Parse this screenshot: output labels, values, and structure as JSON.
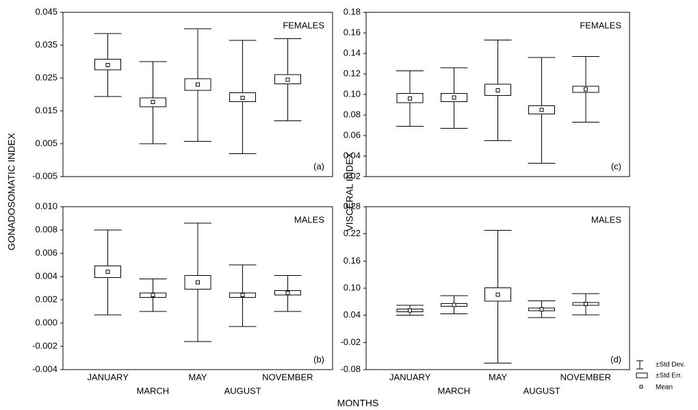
{
  "chart_data": [
    {
      "type": "box",
      "annotation": "FEMALES",
      "panel_label": "(a)",
      "means": [
        0.029,
        0.0177,
        0.023,
        0.019,
        0.0245
      ],
      "se_low": [
        0.0275,
        0.0163,
        0.0213,
        0.0178,
        0.0232
      ],
      "se_high": [
        0.0307,
        0.019,
        0.0248,
        0.0205,
        0.026
      ],
      "sd_low": [
        0.0194,
        0.005,
        0.0057,
        0.002,
        0.012
      ],
      "sd_high": [
        0.0385,
        0.03,
        0.04,
        0.0365,
        0.037
      ],
      "ylim": [
        -0.005,
        0.045
      ],
      "yticks": [
        -0.005,
        0.005,
        0.015,
        0.025,
        0.035,
        0.045
      ]
    },
    {
      "type": "box",
      "annotation": "MALES",
      "panel_label": "(b)",
      "categories": [
        "JANUARY",
        "MARCH",
        "MAY",
        "AUGUST",
        "NOVEMBER"
      ],
      "means": [
        0.0044,
        0.0024,
        0.0035,
        0.0024,
        0.0026
      ],
      "se_low": [
        0.0039,
        0.0022,
        0.0029,
        0.0022,
        0.0024
      ],
      "se_high": [
        0.0049,
        0.0026,
        0.0041,
        0.0026,
        0.0028
      ],
      "sd_low": [
        0.0007,
        0.001,
        -0.0016,
        -0.0003,
        0.001
      ],
      "sd_high": [
        0.008,
        0.0038,
        0.0086,
        0.005,
        0.0041
      ],
      "ylim": [
        -0.004,
        0.01
      ],
      "yticks": [
        -0.004,
        -0.002,
        {
          "value": 0,
          "label": "0.000"
        },
        0.002,
        0.004,
        0.006,
        0.008,
        {
          "value": 0.01,
          "label": "0.010"
        }
      ]
    },
    {
      "type": "box",
      "annotation": "FEMALES",
      "panel_label": "(c)",
      "means": [
        0.096,
        0.097,
        0.104,
        0.085,
        0.105
      ],
      "se_low": [
        0.092,
        0.093,
        0.099,
        0.081,
        0.102
      ],
      "se_high": [
        0.101,
        0.101,
        0.11,
        0.089,
        0.108
      ],
      "sd_low": [
        0.069,
        0.067,
        0.055,
        0.033,
        0.073
      ],
      "sd_high": [
        0.123,
        0.126,
        0.153,
        0.136,
        0.137
      ],
      "ylim": [
        0.02,
        0.18
      ],
      "yticks": [
        0.02,
        0.04,
        0.06,
        0.08,
        {
          "value": 0.1,
          "label": "0.10"
        },
        0.12,
        0.14,
        0.16,
        0.18
      ]
    },
    {
      "type": "box",
      "annotation": "MALES",
      "panel_label": "(d)",
      "categories": [
        "JANUARY",
        "MARCH",
        "MAY",
        "AUGUST",
        "NOVEMBER"
      ],
      "means": [
        0.051,
        0.063,
        0.086,
        0.053,
        0.065
      ],
      "se_low": [
        0.048,
        0.06,
        0.071,
        0.05,
        0.062
      ],
      "se_high": [
        0.054,
        0.066,
        0.101,
        0.056,
        0.068
      ],
      "sd_low": [
        0.04,
        0.043,
        -0.066,
        0.035,
        0.041
      ],
      "sd_high": [
        0.062,
        0.083,
        0.228,
        0.072,
        0.088
      ],
      "ylim": [
        -0.08,
        0.28
      ],
      "yticks": [
        -0.08,
        -0.02,
        0.04,
        {
          "value": 0.1,
          "label": "0.10"
        },
        0.16,
        0.22,
        0.28
      ]
    }
  ],
  "ylabel_left": "GONADOSOMATIC INDEX",
  "ylabel_right": "VISCERAL INDEX",
  "xlabel": "MONTHS",
  "legend": [
    "±Std Dev.",
    "±Std Err.",
    "Mean"
  ]
}
